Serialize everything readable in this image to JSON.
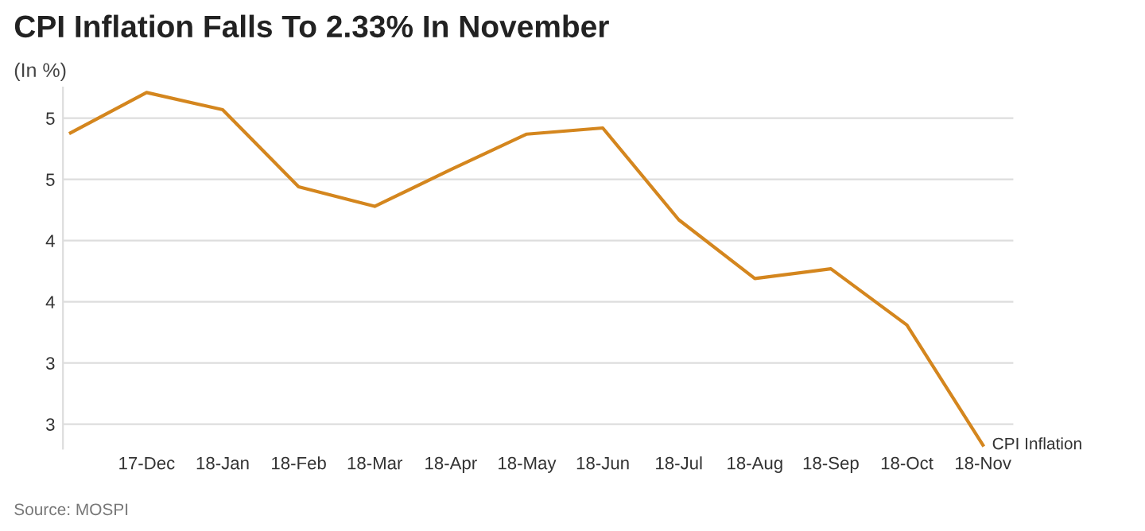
{
  "chart_data": {
    "type": "line",
    "title": "CPI Inflation Falls To 2.33% In November",
    "subtitle": "(In %)",
    "categories": [
      null,
      "17-Dec",
      "18-Jan",
      "18-Feb",
      "18-Mar",
      "18-Apr",
      "18-May",
      "18-Jun",
      "18-Jul",
      "18-Aug",
      "18-Sep",
      "18-Oct",
      "18-Nov"
    ],
    "series": [
      {
        "name": "CPI Inflation",
        "color": "#d4861e",
        "values": [
          4.88,
          5.21,
          5.07,
          4.44,
          4.28,
          4.58,
          4.87,
          4.92,
          4.17,
          3.69,
          3.77,
          3.31,
          2.33
        ]
      }
    ],
    "ylim": [
      2.3,
      5.25
    ],
    "yticks": [
      {
        "value": 2.5,
        "label": "3"
      },
      {
        "value": 3.0,
        "label": "3"
      },
      {
        "value": 3.5,
        "label": "4"
      },
      {
        "value": 4.0,
        "label": "4"
      },
      {
        "value": 4.5,
        "label": "5"
      },
      {
        "value": 5.0,
        "label": "5"
      }
    ],
    "grid": "y",
    "marker": "none",
    "line_style": "solid",
    "legend": false,
    "annotations": [
      "Source: MOSPI"
    ]
  }
}
